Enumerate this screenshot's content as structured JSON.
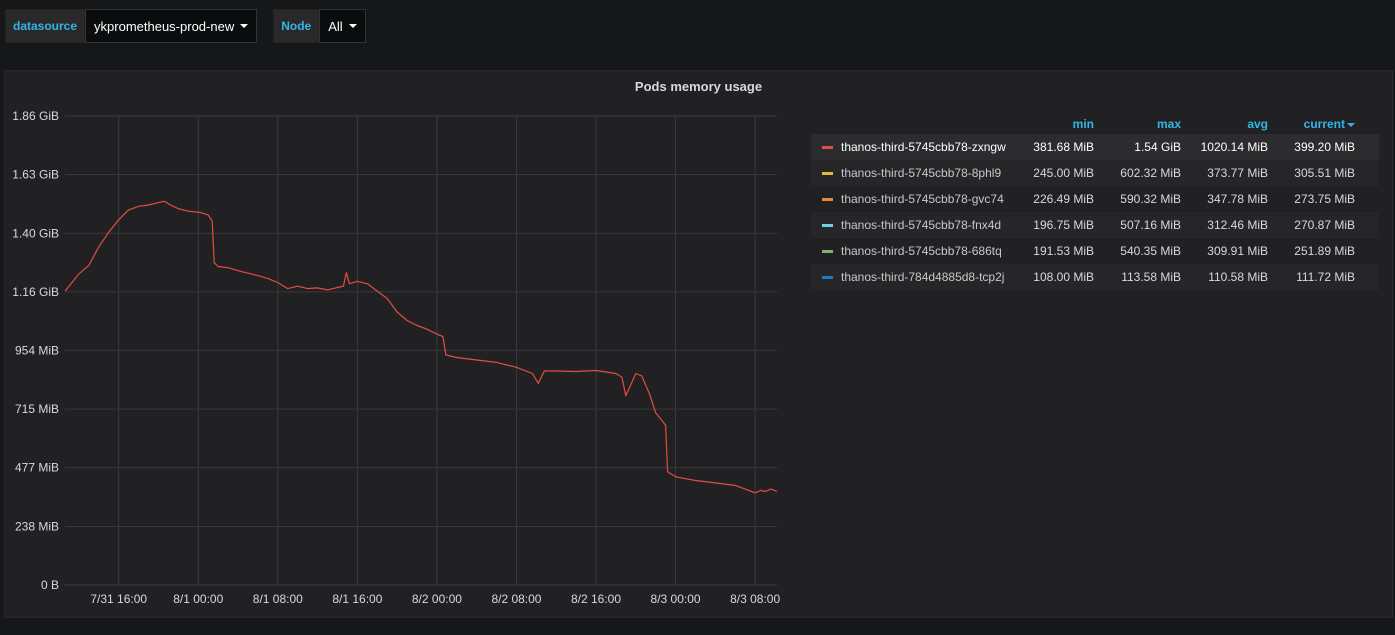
{
  "variables": [
    {
      "label": "datasource",
      "value": "ykprometheus-prod-new"
    },
    {
      "label": "Node",
      "value": "All"
    }
  ],
  "panel": {
    "title": "Pods memory usage"
  },
  "legend": {
    "columns": [
      "min",
      "max",
      "avg",
      "current"
    ],
    "rows": [
      {
        "name": "thanos-third-5745cbb78-zxngw",
        "color": "#e24d42",
        "min": "381.68 MiB",
        "max": "1.54 GiB",
        "avg": "1020.14 MiB",
        "current": "399.20 MiB"
      },
      {
        "name": "thanos-third-5745cbb78-8phl9",
        "color": "#eab839",
        "min": "245.00 MiB",
        "max": "602.32 MiB",
        "avg": "373.77 MiB",
        "current": "305.51 MiB"
      },
      {
        "name": "thanos-third-5745cbb78-gvc74",
        "color": "#ef843c",
        "min": "226.49 MiB",
        "max": "590.32 MiB",
        "avg": "347.78 MiB",
        "current": "273.75 MiB"
      },
      {
        "name": "thanos-third-5745cbb78-fnx4d",
        "color": "#6ed0e0",
        "min": "196.75 MiB",
        "max": "507.16 MiB",
        "avg": "312.46 MiB",
        "current": "270.87 MiB"
      },
      {
        "name": "thanos-third-5745cbb78-686tq",
        "color": "#7eb26d",
        "min": "191.53 MiB",
        "max": "540.35 MiB",
        "avg": "309.91 MiB",
        "current": "251.89 MiB"
      },
      {
        "name": "thanos-third-784d4885d8-tcp2j",
        "color": "#1f78c1",
        "min": "108.00 MiB",
        "max": "113.58 MiB",
        "avg": "110.58 MiB",
        "current": "111.72 MiB"
      }
    ]
  },
  "chart_data": {
    "type": "line",
    "title": "Pods memory usage",
    "y_ticks": [
      "0 B",
      "238 MiB",
      "477 MiB",
      "715 MiB",
      "954 MiB",
      "1.16 GiB",
      "1.40 GiB",
      "1.63 GiB",
      "1.86 GiB"
    ],
    "y_tick_values_mib": [
      0,
      238,
      477,
      715,
      954,
      1192,
      1430,
      1669,
      1907
    ],
    "ylim_mib": [
      0,
      1907
    ],
    "x_ticks": [
      "7/31 16:00",
      "8/1 00:00",
      "8/1 08:00",
      "8/1 16:00",
      "8/2 00:00",
      "8/2 08:00",
      "8/2 16:00",
      "8/3 00:00",
      "8/3 08:00"
    ],
    "x_tick_hours": [
      16,
      24,
      32,
      40,
      48,
      56,
      64,
      72,
      80
    ],
    "xlim_hours": [
      10.6,
      82.2
    ],
    "grid": true,
    "series": [
      {
        "name": "thanos-third-5745cbb78-zxngw",
        "color": "#e24d42",
        "points_hours_mib": [
          [
            10.6,
            1195
          ],
          [
            11.2,
            1225
          ],
          [
            12.0,
            1265
          ],
          [
            13.0,
            1300
          ],
          [
            14.0,
            1375
          ],
          [
            15.0,
            1435
          ],
          [
            16.0,
            1485
          ],
          [
            17.0,
            1525
          ],
          [
            18.0,
            1540
          ],
          [
            19.0,
            1545
          ],
          [
            20.0,
            1555
          ],
          [
            20.6,
            1560
          ],
          [
            21.2,
            1545
          ],
          [
            22.0,
            1530
          ],
          [
            23.0,
            1520
          ],
          [
            24.2,
            1515
          ],
          [
            25.0,
            1505
          ],
          [
            25.4,
            1480
          ],
          [
            25.6,
            1310
          ],
          [
            26.0,
            1295
          ],
          [
            27.0,
            1290
          ],
          [
            28.0,
            1278
          ],
          [
            29.0,
            1268
          ],
          [
            30.0,
            1258
          ],
          [
            31.0,
            1246
          ],
          [
            32.0,
            1230
          ],
          [
            33.0,
            1205
          ],
          [
            34.0,
            1215
          ],
          [
            35.0,
            1205
          ],
          [
            36.0,
            1208
          ],
          [
            37.0,
            1200
          ],
          [
            38.0,
            1210
          ],
          [
            38.6,
            1215
          ],
          [
            38.9,
            1270
          ],
          [
            39.2,
            1225
          ],
          [
            40.0,
            1235
          ],
          [
            41.0,
            1225
          ],
          [
            42.0,
            1195
          ],
          [
            43.0,
            1165
          ],
          [
            44.0,
            1110
          ],
          [
            45.0,
            1075
          ],
          [
            46.0,
            1055
          ],
          [
            47.0,
            1040
          ],
          [
            48.0,
            1020
          ],
          [
            48.6,
            1010
          ],
          [
            48.9,
            935
          ],
          [
            50.0,
            925
          ],
          [
            52.0,
            915
          ],
          [
            54.0,
            905
          ],
          [
            56.0,
            885
          ],
          [
            57.6,
            860
          ],
          [
            58.2,
            820
          ],
          [
            58.8,
            870
          ],
          [
            60.0,
            870
          ],
          [
            62.0,
            868
          ],
          [
            64.0,
            872
          ],
          [
            66.0,
            860
          ],
          [
            66.6,
            845
          ],
          [
            67.0,
            770
          ],
          [
            67.4,
            805
          ],
          [
            68.0,
            860
          ],
          [
            68.6,
            850
          ],
          [
            69.4,
            775
          ],
          [
            70.0,
            700
          ],
          [
            71.0,
            650
          ],
          [
            71.2,
            460
          ],
          [
            72.0,
            440
          ],
          [
            74.0,
            425
          ],
          [
            76.0,
            415
          ],
          [
            78.0,
            405
          ],
          [
            79.0,
            390
          ],
          [
            80.0,
            375
          ],
          [
            80.6,
            385
          ],
          [
            81.0,
            380
          ],
          [
            81.6,
            390
          ],
          [
            82.2,
            380
          ]
        ]
      }
    ]
  }
}
